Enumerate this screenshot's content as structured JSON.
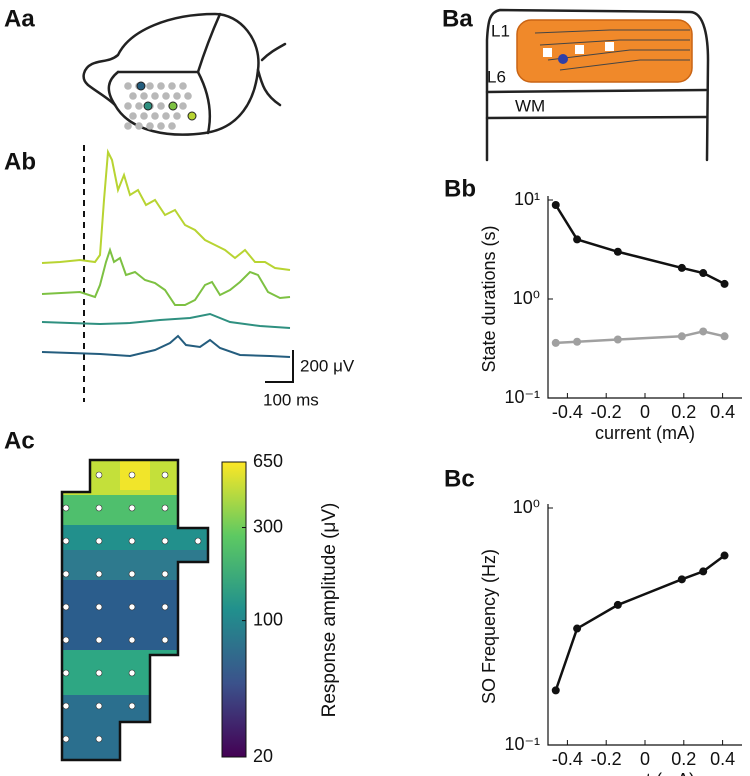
{
  "panel_labels": [
    "Aa",
    "Ab",
    "Ac",
    "Ba"
  ],
  "probe_labels": [
    "L1",
    "L6",
    "WM"
  ],
  "scale_bar": {
    "voltage": "200 μV",
    "time": "100 ms"
  },
  "colorbar": {
    "label": "Response amplitude (μV)",
    "lim": [
      20,
      650
    ],
    "ticks": [
      20,
      100,
      300,
      650
    ],
    "log": true
  },
  "chart_data": [
    {
      "type": "line",
      "title": "Bb",
      "xlabel": "current (mA)",
      "ylabel": "State durations (s)",
      "x": [
        -0.46,
        -0.35,
        -0.14,
        0.19,
        0.3,
        0.41
      ],
      "series": [
        {
          "color": "#111111",
          "values": [
            8.9,
            4.0,
            3.0,
            2.06,
            1.83,
            1.42
          ]
        },
        {
          "color": "#a0a0a0",
          "values": [
            0.36,
            0.37,
            0.39,
            0.42,
            0.47,
            0.42
          ]
        }
      ],
      "xlim": [
        -0.5,
        0.5
      ],
      "xticks": [
        -0.4,
        -0.2,
        0,
        0.2,
        0.4
      ],
      "ylim": [
        0.1,
        10
      ],
      "ylog": true,
      "yticks": [
        {
          "value": 0.1,
          "label": "10⁻¹"
        },
        {
          "value": 1,
          "label": "10⁰"
        },
        {
          "value": 10,
          "label": "10¹"
        }
      ]
    },
    {
      "type": "line",
      "title": "Bc",
      "xlabel": "current (mA)",
      "ylabel": "SO Frequency (Hz)",
      "x": [
        -0.46,
        -0.35,
        -0.14,
        0.19,
        0.3,
        0.41
      ],
      "series": [
        {
          "color": "#111111",
          "values": [
            0.17,
            0.31,
            0.39,
            0.5,
            0.54,
            0.63
          ]
        }
      ],
      "xlim": [
        -0.5,
        0.5
      ],
      "xticks": [
        -0.4,
        -0.2,
        0,
        0.2,
        0.4
      ],
      "ylim": [
        0.1,
        1
      ],
      "ylog": true,
      "yticks": [
        {
          "value": 0.1,
          "label": "10⁻¹"
        },
        {
          "value": 1,
          "label": "10⁰"
        }
      ]
    }
  ]
}
